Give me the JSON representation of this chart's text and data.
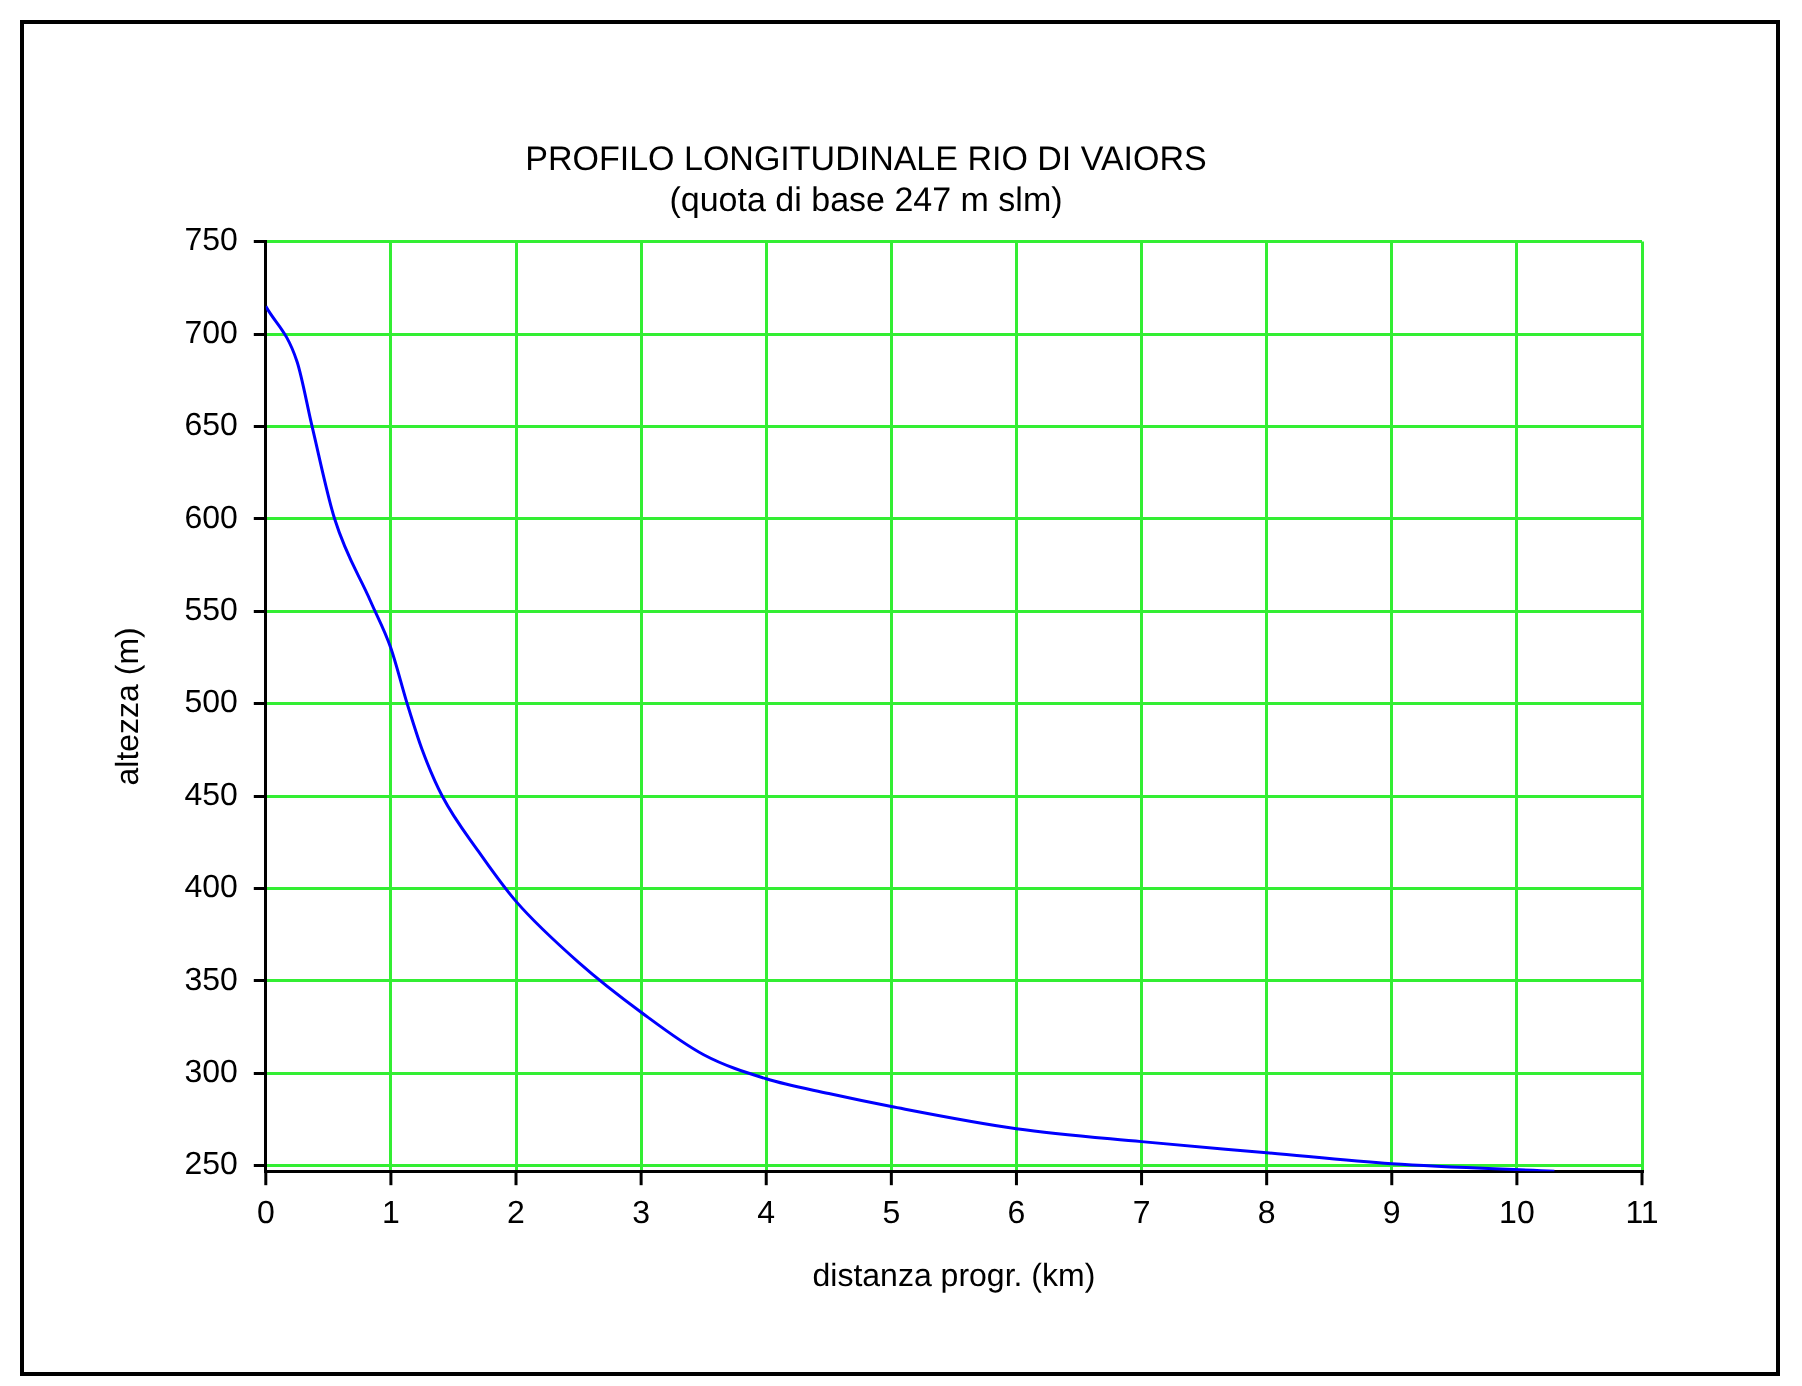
{
  "chart_data": {
    "type": "line",
    "title": "PROFILO LONGITUDINALE RIO DI VAIORS",
    "subtitle": "(quota di base 247 m slm)",
    "xlabel": "distanza progr. (km)",
    "ylabel": "altezza (m)",
    "series": [
      {
        "color": "#0000ff",
        "x": [
          0,
          0.25,
          0.37,
          0.55,
          0.84,
          1.0,
          1.13,
          1.25,
          1.41,
          1.7,
          2.0,
          2.5,
          3.0,
          3.5,
          4.0,
          4.5,
          5.0,
          6.0,
          7.0,
          8.0,
          9.0,
          10.3
        ],
        "values": [
          715,
          685,
          650,
          600,
          555,
          530,
          500,
          475,
          450,
          420,
          393,
          360,
          333,
          310,
          297,
          289,
          282,
          270,
          263,
          257,
          251,
          247
        ]
      }
    ],
    "xlim": [
      0,
      11
    ],
    "xticks": [
      0,
      1,
      2,
      3,
      4,
      5,
      6,
      7,
      8,
      9,
      10,
      11
    ],
    "ylim": [
      247,
      750
    ],
    "yticks": [
      250,
      300,
      350,
      400,
      450,
      500,
      550,
      600,
      650,
      700,
      750
    ],
    "grid": true,
    "legend": false,
    "marker": "none",
    "line_style": "solid"
  }
}
